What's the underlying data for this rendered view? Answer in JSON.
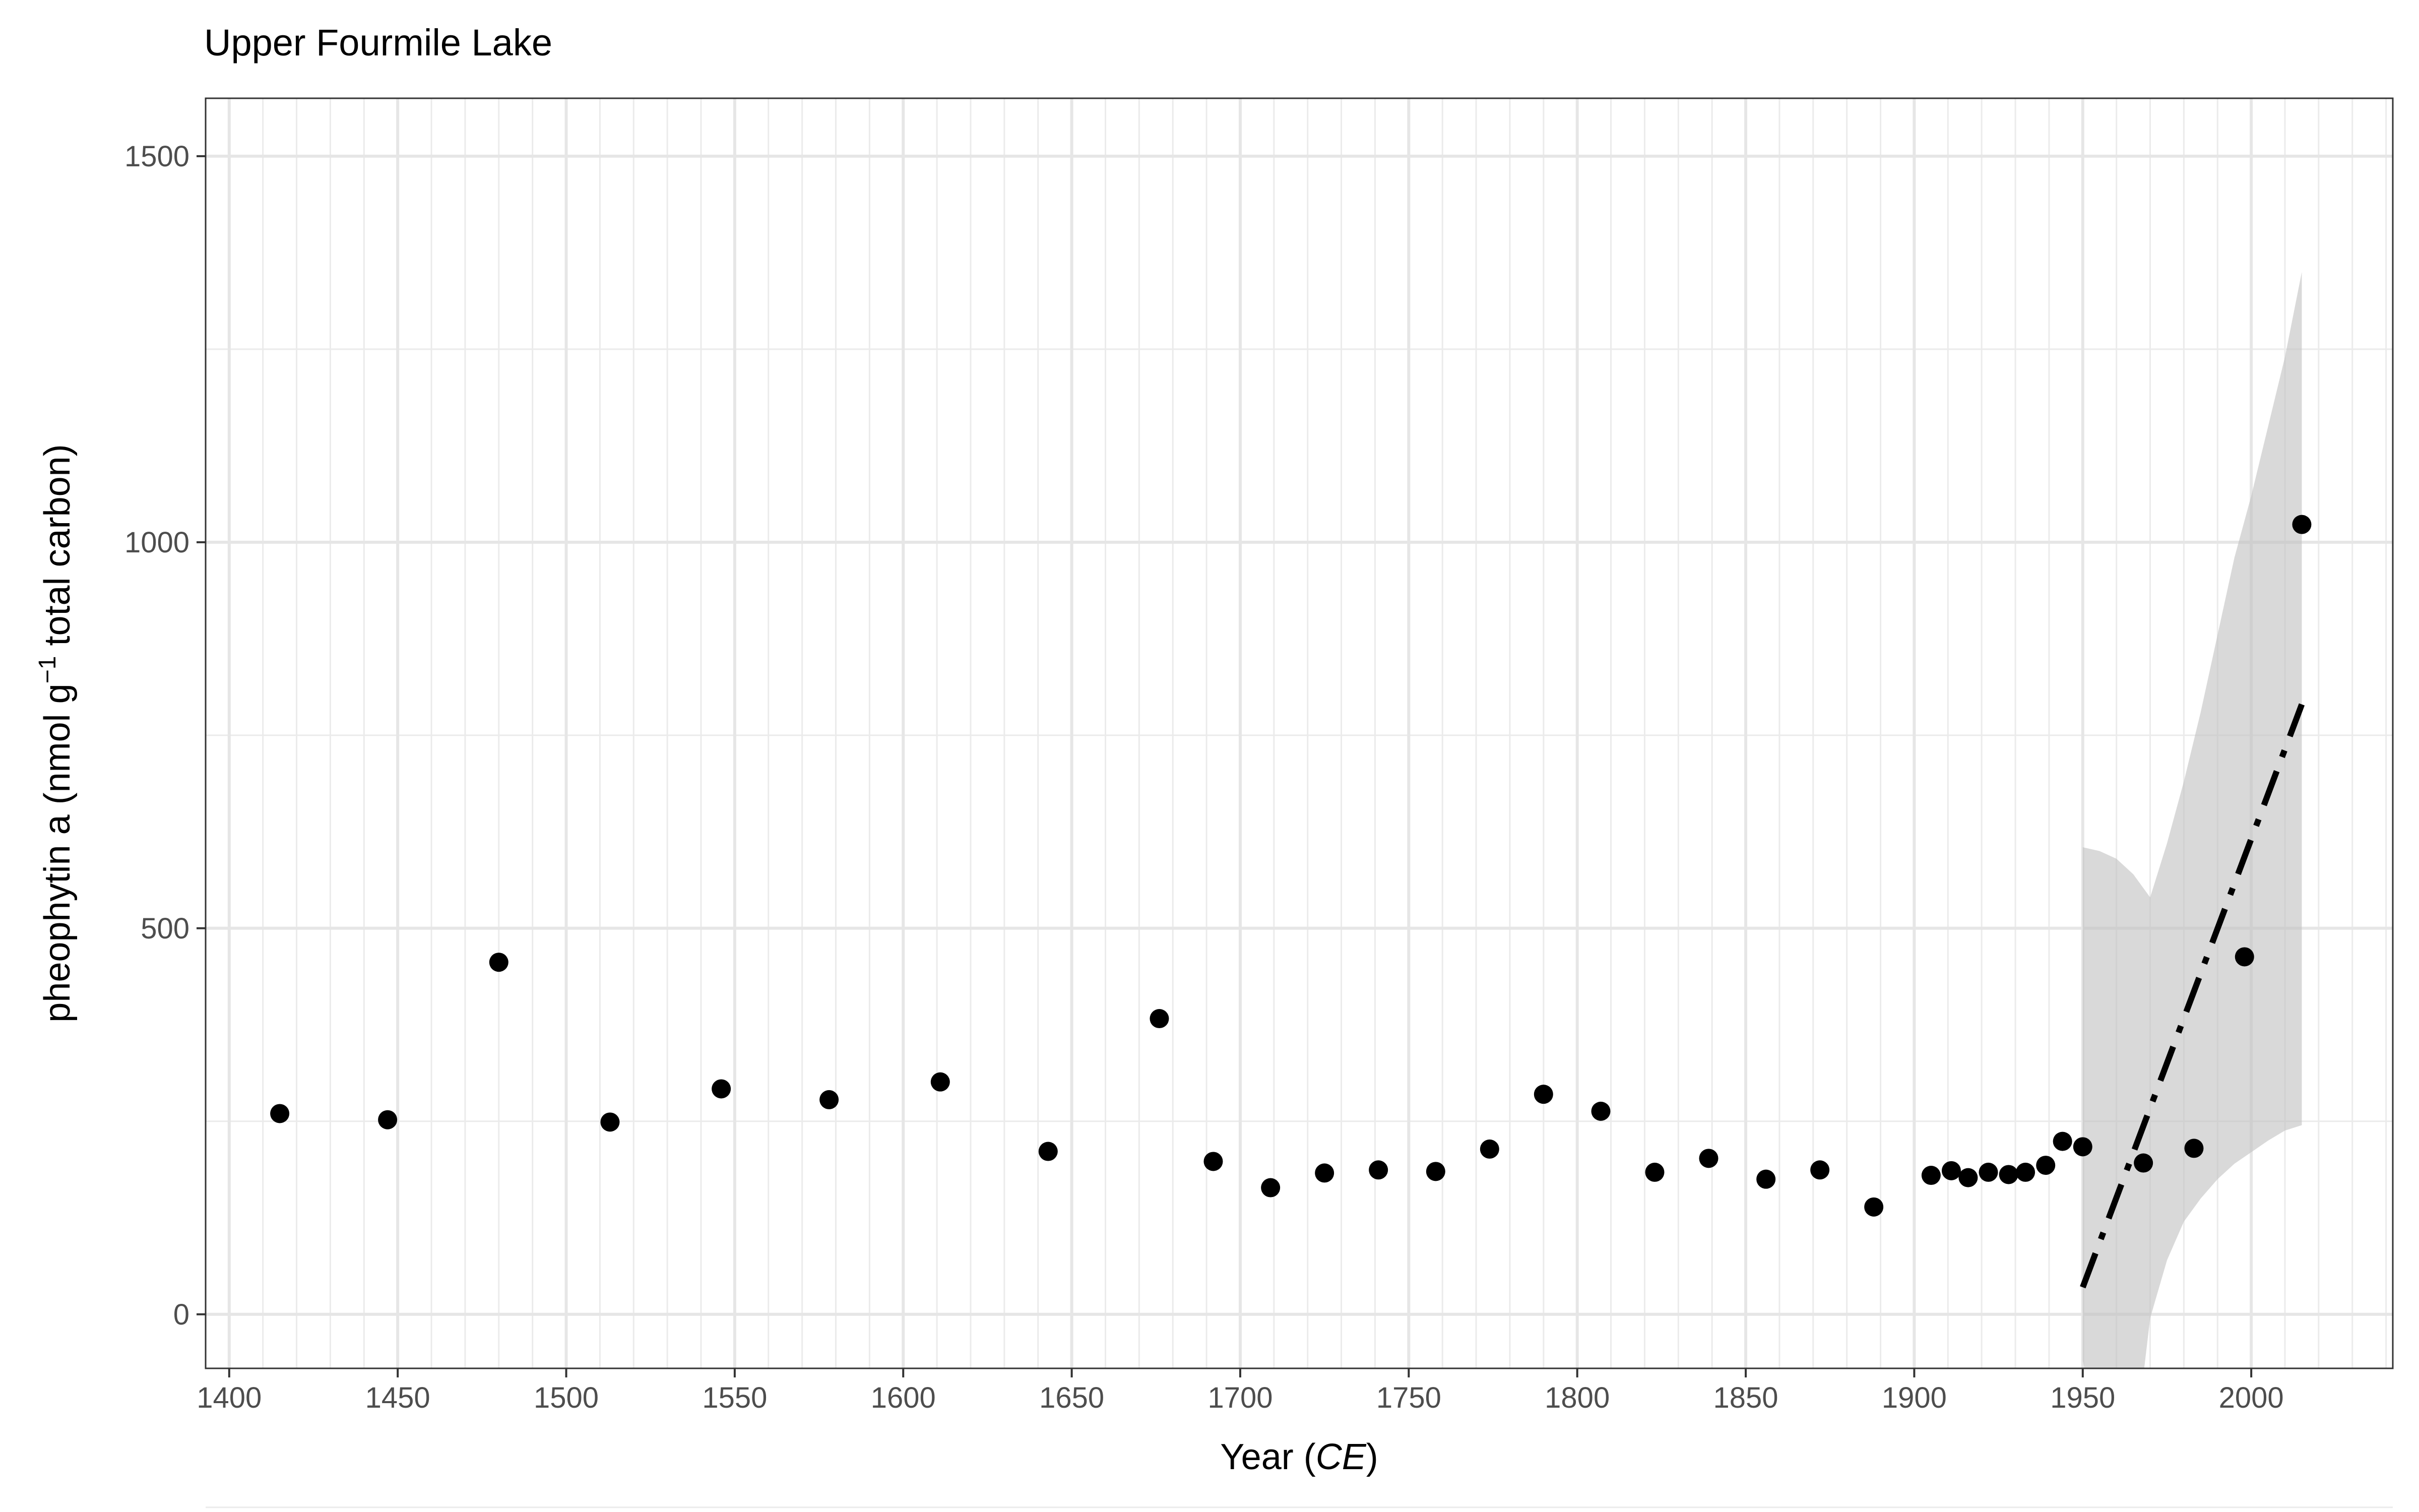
{
  "chart_data": {
    "type": "scatter",
    "title": "Upper Fourmile Lake",
    "xlabel": {
      "prefix": "Year (",
      "italic": "CE",
      "suffix": ")"
    },
    "ylabel": {
      "prefix": "pheophytin a (nmol g",
      "superscript": "−1",
      "suffix": " total carbon)"
    },
    "xlim": [
      1393,
      2042
    ],
    "ylim": [
      -70,
      1575
    ],
    "x_ticks": [
      1400,
      1450,
      1500,
      1550,
      1600,
      1650,
      1700,
      1750,
      1800,
      1850,
      1900,
      1950,
      2000
    ],
    "y_ticks": [
      0,
      500,
      1000,
      1500
    ],
    "grid": true,
    "points": [
      {
        "x": 1415,
        "y": 260
      },
      {
        "x": 1447,
        "y": 252
      },
      {
        "x": 1480,
        "y": 456
      },
      {
        "x": 1513,
        "y": 249
      },
      {
        "x": 1546,
        "y": 292
      },
      {
        "x": 1578,
        "y": 278
      },
      {
        "x": 1611,
        "y": 301
      },
      {
        "x": 1643,
        "y": 211
      },
      {
        "x": 1676,
        "y": 383
      },
      {
        "x": 1692,
        "y": 198
      },
      {
        "x": 1709,
        "y": 164
      },
      {
        "x": 1725,
        "y": 183
      },
      {
        "x": 1741,
        "y": 187
      },
      {
        "x": 1758,
        "y": 185
      },
      {
        "x": 1774,
        "y": 214
      },
      {
        "x": 1790,
        "y": 285
      },
      {
        "x": 1807,
        "y": 263
      },
      {
        "x": 1823,
        "y": 184
      },
      {
        "x": 1839,
        "y": 202
      },
      {
        "x": 1856,
        "y": 175
      },
      {
        "x": 1872,
        "y": 187
      },
      {
        "x": 1888,
        "y": 139
      },
      {
        "x": 1905,
        "y": 180
      },
      {
        "x": 1911,
        "y": 186
      },
      {
        "x": 1916,
        "y": 177
      },
      {
        "x": 1922,
        "y": 184
      },
      {
        "x": 1928,
        "y": 181
      },
      {
        "x": 1933,
        "y": 184
      },
      {
        "x": 1939,
        "y": 193
      },
      {
        "x": 1944,
        "y": 224
      },
      {
        "x": 1950,
        "y": 217
      },
      {
        "x": 1968,
        "y": 196
      },
      {
        "x": 1983,
        "y": 215
      },
      {
        "x": 1998,
        "y": 463
      },
      {
        "x": 2015,
        "y": 1023
      }
    ],
    "trend": {
      "x": [
        1950,
        2015
      ],
      "y": [
        35,
        790
      ],
      "linestyle": "dashdot",
      "color": "#000000"
    },
    "confidence_band": {
      "color": "#bfbfbf",
      "upper": [
        [
          1950,
          605
        ],
        [
          1955,
          600
        ],
        [
          1960,
          590
        ],
        [
          1965,
          570
        ],
        [
          1970,
          540
        ],
        [
          1975,
          610
        ],
        [
          1980,
          690
        ],
        [
          1985,
          780
        ],
        [
          1990,
          880
        ],
        [
          1995,
          980
        ],
        [
          2000,
          1060
        ],
        [
          2005,
          1150
        ],
        [
          2010,
          1240
        ],
        [
          2015,
          1350
        ]
      ],
      "lower": [
        [
          1950,
          -60
        ],
        [
          1955,
          -150
        ],
        [
          1962,
          -300
        ],
        [
          1970,
          -5
        ],
        [
          1975,
          70
        ],
        [
          1980,
          120
        ],
        [
          1985,
          150
        ],
        [
          1990,
          175
        ],
        [
          1995,
          195
        ],
        [
          2000,
          210
        ],
        [
          2005,
          225
        ],
        [
          2010,
          238
        ],
        [
          2015,
          245
        ]
      ]
    },
    "point_color": "#000000"
  }
}
